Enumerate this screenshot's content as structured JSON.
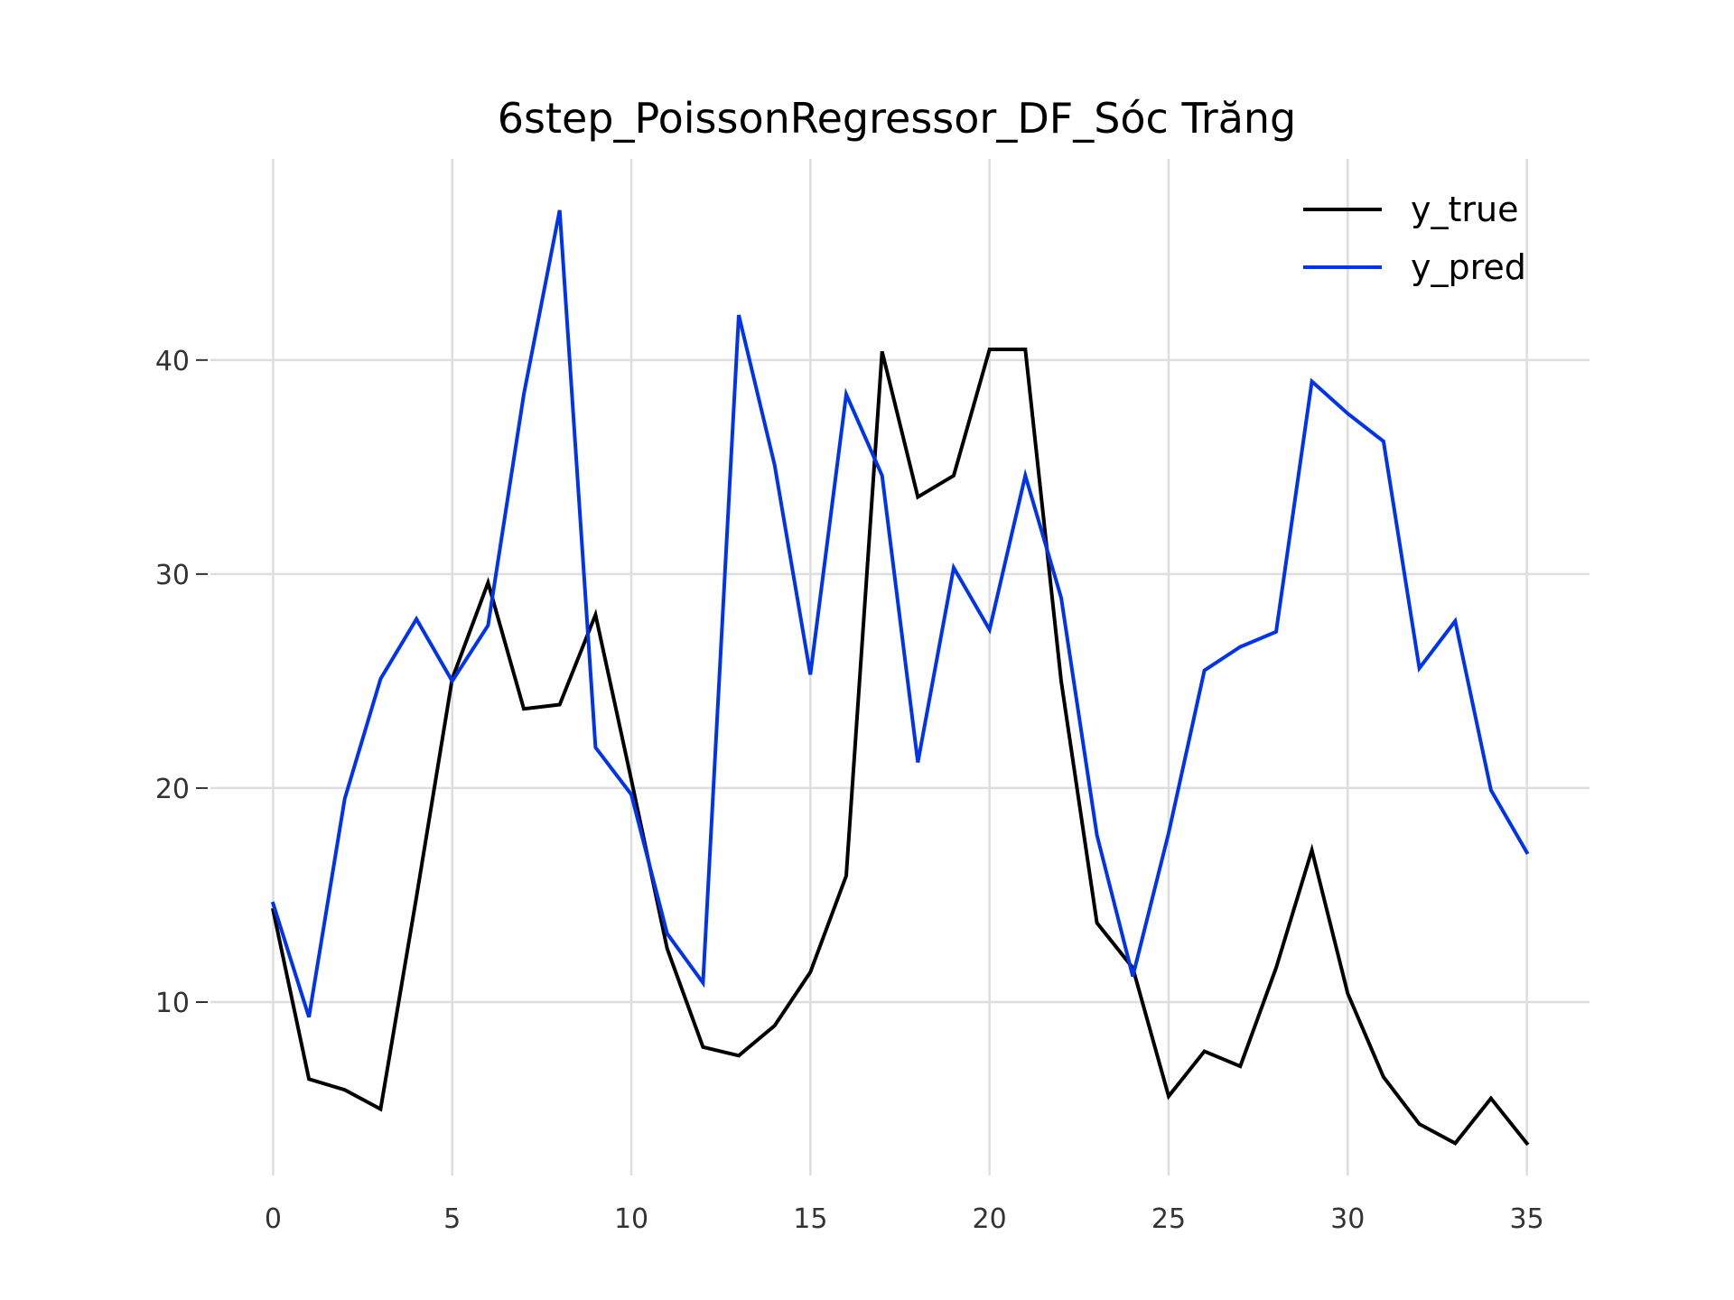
{
  "chart_data": {
    "type": "line",
    "title": "6step_PoissonRegressor_DF_Sóc Trăng",
    "xlabel": "",
    "ylabel": "",
    "xlim": [
      -1.75,
      36.75
    ],
    "ylim": [
      1.9,
      49.4
    ],
    "xticks": [
      0,
      5,
      10,
      15,
      20,
      25,
      30,
      35
    ],
    "yticks": [
      10,
      20,
      30,
      40
    ],
    "grid": true,
    "legend_position": "top-right",
    "x": [
      0,
      1,
      2,
      3,
      4,
      5,
      6,
      7,
      8,
      9,
      10,
      11,
      12,
      13,
      14,
      15,
      16,
      17,
      18,
      19,
      20,
      21,
      22,
      23,
      24,
      25,
      26,
      27,
      28,
      29,
      30,
      31,
      32,
      33,
      34,
      35
    ],
    "series": [
      {
        "name": "y_true",
        "color": "#000000",
        "values": [
          14.3,
          6.4,
          5.9,
          5.0,
          14.9,
          25.1,
          29.6,
          23.7,
          23.9,
          28.1,
          20.4,
          12.5,
          7.9,
          7.5,
          8.9,
          11.4,
          15.9,
          40.4,
          33.6,
          34.6,
          40.5,
          40.5,
          25.0,
          13.7,
          11.6,
          5.6,
          7.7,
          7.0,
          11.6,
          17.1,
          10.4,
          6.5,
          4.3,
          3.4,
          5.5,
          3.4
        ]
      },
      {
        "name": "y_pred",
        "color": "#0033ee",
        "values": [
          14.6,
          9.3,
          19.5,
          25.1,
          27.9,
          25.0,
          27.6,
          38.4,
          47.0,
          21.9,
          19.7,
          13.2,
          10.9,
          42.1,
          35.1,
          25.3,
          38.4,
          34.6,
          21.2,
          30.3,
          27.4,
          34.6,
          28.9,
          17.8,
          11.2,
          17.9,
          25.5,
          26.6,
          27.3,
          39.0,
          37.5,
          36.2,
          25.6,
          27.8,
          19.9,
          17.0
        ]
      }
    ]
  }
}
